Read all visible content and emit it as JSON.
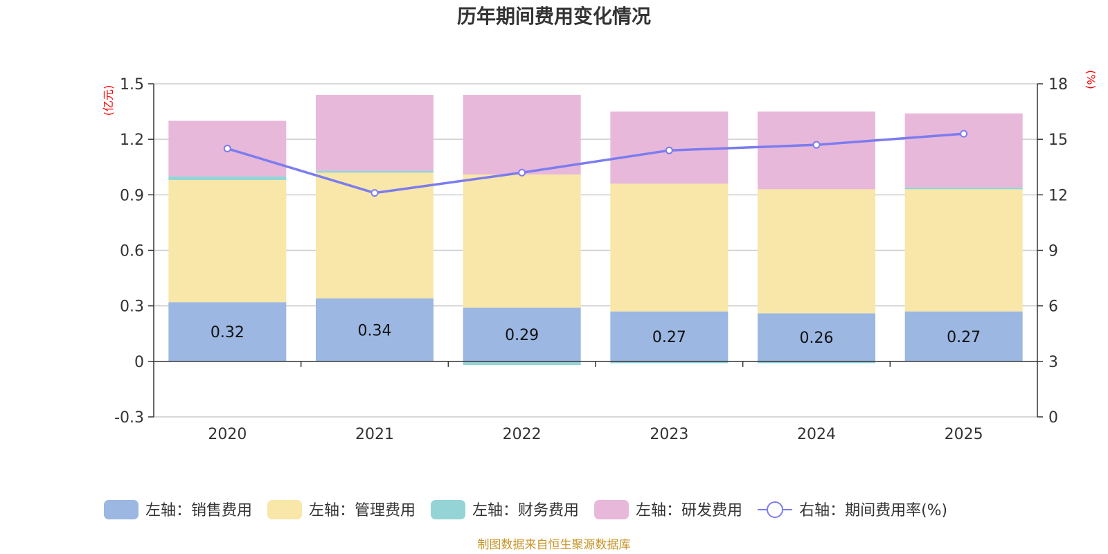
{
  "chart_data": {
    "type": "bar",
    "title": "历年期间费用变化情况",
    "categories": [
      "2020",
      "2021",
      "2022",
      "2023",
      "2024",
      "2025"
    ],
    "left_axis": {
      "unit": "(亿元)",
      "ylim": [
        -0.3,
        1.5
      ],
      "ticks": [
        -0.3,
        0,
        0.3,
        0.6,
        0.9,
        1.2,
        1.5
      ],
      "tick_labels": [
        "-0.3",
        "0",
        "0.3",
        "0.6",
        "0.9",
        "1.2",
        "1.5"
      ]
    },
    "right_axis": {
      "unit": "(%)",
      "ylim": [
        0,
        18
      ],
      "ticks": [
        0,
        3,
        6,
        9,
        12,
        15,
        18
      ],
      "tick_labels": [
        "0",
        "3",
        "6",
        "9",
        "12",
        "15",
        "18"
      ]
    },
    "series": [
      {
        "name": "左轴：销售费用",
        "type": "bar",
        "color": "#9bb7e2",
        "values": [
          0.32,
          0.34,
          0.29,
          0.27,
          0.26,
          0.27
        ],
        "labels": [
          "0.32",
          "0.34",
          "0.29",
          "0.27",
          "0.26",
          "0.27"
        ]
      },
      {
        "name": "左轴：管理费用",
        "type": "bar",
        "color": "#f8e7a8",
        "values": [
          0.66,
          0.68,
          0.72,
          0.69,
          0.67,
          0.66
        ]
      },
      {
        "name": "左轴：财务费用",
        "type": "bar",
        "color": "#94d4d6",
        "values": [
          0.02,
          0.01,
          -0.02,
          -0.01,
          -0.01,
          0.01
        ]
      },
      {
        "name": "左轴：研发费用",
        "type": "bar",
        "color": "#e8b8da",
        "values": [
          0.3,
          0.41,
          0.43,
          0.39,
          0.42,
          0.4
        ]
      },
      {
        "name": "右轴：期间费用率(%)",
        "type": "line",
        "axis": "right",
        "color": "#7b7cef",
        "values": [
          14.5,
          12.1,
          13.2,
          14.4,
          14.7,
          15.3
        ]
      }
    ],
    "source": "制图数据来自恒生聚源数据库"
  }
}
